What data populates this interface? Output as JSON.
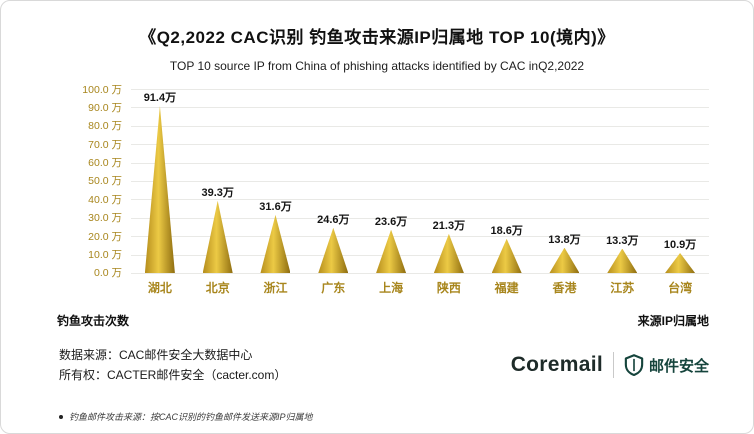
{
  "title": "《Q2,2022  CAC识别 钓鱼攻击来源IP归属地 TOP 10(境内)》",
  "subtitle": "TOP 10 source IP from China of phishing attacks identified by CAC inQ2,2022",
  "chart_data": {
    "type": "bar",
    "bar_shape": "triangle",
    "categories": [
      "湖北",
      "北京",
      "浙江",
      "广东",
      "上海",
      "陕西",
      "福建",
      "香港",
      "江苏",
      "台湾"
    ],
    "values": [
      91.4,
      39.3,
      31.6,
      24.6,
      23.6,
      21.3,
      18.6,
      13.8,
      13.3,
      10.9
    ],
    "value_labels": [
      "91.4万",
      "39.3万",
      "31.6万",
      "24.6万",
      "23.6万",
      "21.3万",
      "18.6万",
      "13.8万",
      "13.3万",
      "10.9万"
    ],
    "y_ticks": [
      "100.0 万",
      "90.0 万",
      "80.0 万",
      "70.0 万",
      "60.0 万",
      "50.0 万",
      "40.0 万",
      "30.0 万",
      "20.0 万",
      "10.0 万",
      "0.0 万"
    ],
    "ylim": [
      0,
      100
    ],
    "grid": "horizontal",
    "legend": "none",
    "xlabel_left": "钓鱼攻击次数",
    "xlabel_right": "来源IP归属地",
    "bar_color": "#d4ac2b",
    "axis_text_color": "#a8861d"
  },
  "footer": {
    "source": "数据来源：CAC邮件安全大数据中心",
    "ownership": "所有权：CACTER邮件安全（cacter.com）"
  },
  "logo": {
    "coremail": "Coremail",
    "brand": "邮件安全",
    "brand_color": "#15443c"
  },
  "note": "钓鱼邮件攻击来源：按CAC识别的钓鱼邮件发送来源IP归属地"
}
